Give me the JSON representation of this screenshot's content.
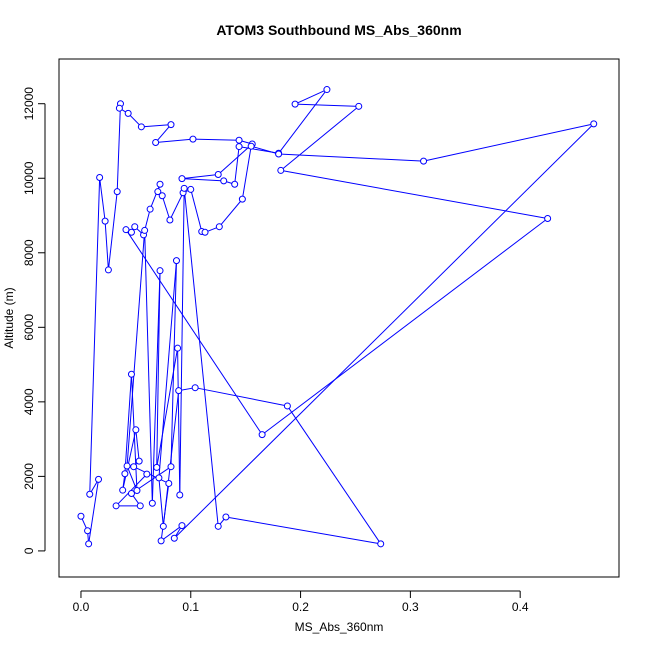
{
  "chart_data": {
    "type": "scatter",
    "title": "ATOM3 Southbound MS_Abs_360nm",
    "xlabel": "MS_Abs_360nm",
    "ylabel": "Altitude (m)",
    "xlim": [
      -0.02,
      0.49
    ],
    "ylim": [
      -700,
      13200
    ],
    "x_ticks": [
      0.0,
      0.1,
      0.2,
      0.3,
      0.4
    ],
    "x_tick_labels": [
      "0.0",
      "0.1",
      "0.2",
      "0.3",
      "0.4"
    ],
    "y_ticks": [
      0,
      2000,
      4000,
      6000,
      8000,
      10000,
      12000
    ],
    "y_tick_labels": [
      "0",
      "2000",
      "4000",
      "6000",
      "8000",
      "10000",
      "12000"
    ],
    "grid": false,
    "legend": "none",
    "colors": {
      "series": "#0000ff",
      "axis": "#000000",
      "background": "#ffffff"
    },
    "series": [
      {
        "connected": true,
        "marker": "open-circle",
        "x": [
          0.0,
          0.006,
          0.007,
          0.016,
          0.008,
          0.017,
          0.022,
          0.025,
          0.033,
          0.036,
          0.035,
          0.043,
          0.055,
          0.082,
          0.068,
          0.102,
          0.144,
          0.156,
          0.125,
          0.092,
          0.13,
          0.14,
          0.144,
          0.18,
          0.224,
          0.195,
          0.253,
          0.182,
          0.425,
          0.165,
          0.041,
          0.046,
          0.049,
          0.057,
          0.063,
          0.072,
          0.07,
          0.074,
          0.081,
          0.093,
          0.1,
          0.11,
          0.113,
          0.126,
          0.147,
          0.155,
          0.18,
          0.312,
          0.467,
          0.085,
          0.092,
          0.073,
          0.08,
          0.048,
          0.053,
          0.05,
          0.038,
          0.04,
          0.046,
          0.051,
          0.042,
          0.058,
          0.065,
          0.072,
          0.069,
          0.088,
          0.09,
          0.094,
          0.125,
          0.132,
          0.273,
          0.188,
          0.104,
          0.089,
          0.075,
          0.071,
          0.087,
          0.082,
          0.046,
          0.054,
          0.032,
          0.06
        ],
        "y": [
          930,
          540,
          190,
          1920,
          1520,
          10020,
          8850,
          7540,
          9640,
          12000,
          11880,
          11740,
          11380,
          11440,
          10960,
          11050,
          11020,
          10920,
          10100,
          9990,
          9930,
          9840,
          10850,
          10670,
          12380,
          11990,
          11930,
          10210,
          8920,
          3120,
          8620,
          8550,
          8700,
          8480,
          9170,
          9840,
          9640,
          9530,
          8880,
          9610,
          9700,
          8570,
          8550,
          8700,
          9440,
          10860,
          10650,
          10460,
          11460,
          340,
          680,
          270,
          1810,
          2260,
          2410,
          3250,
          1630,
          2070,
          4740,
          1620,
          2280,
          8600,
          1280,
          7520,
          2240,
          5440,
          1500,
          9730,
          660,
          910,
          190,
          3890,
          4380,
          4300,
          660,
          1960,
          7790,
          2260,
          1540,
          1210,
          1210,
          2060
        ]
      }
    ]
  }
}
